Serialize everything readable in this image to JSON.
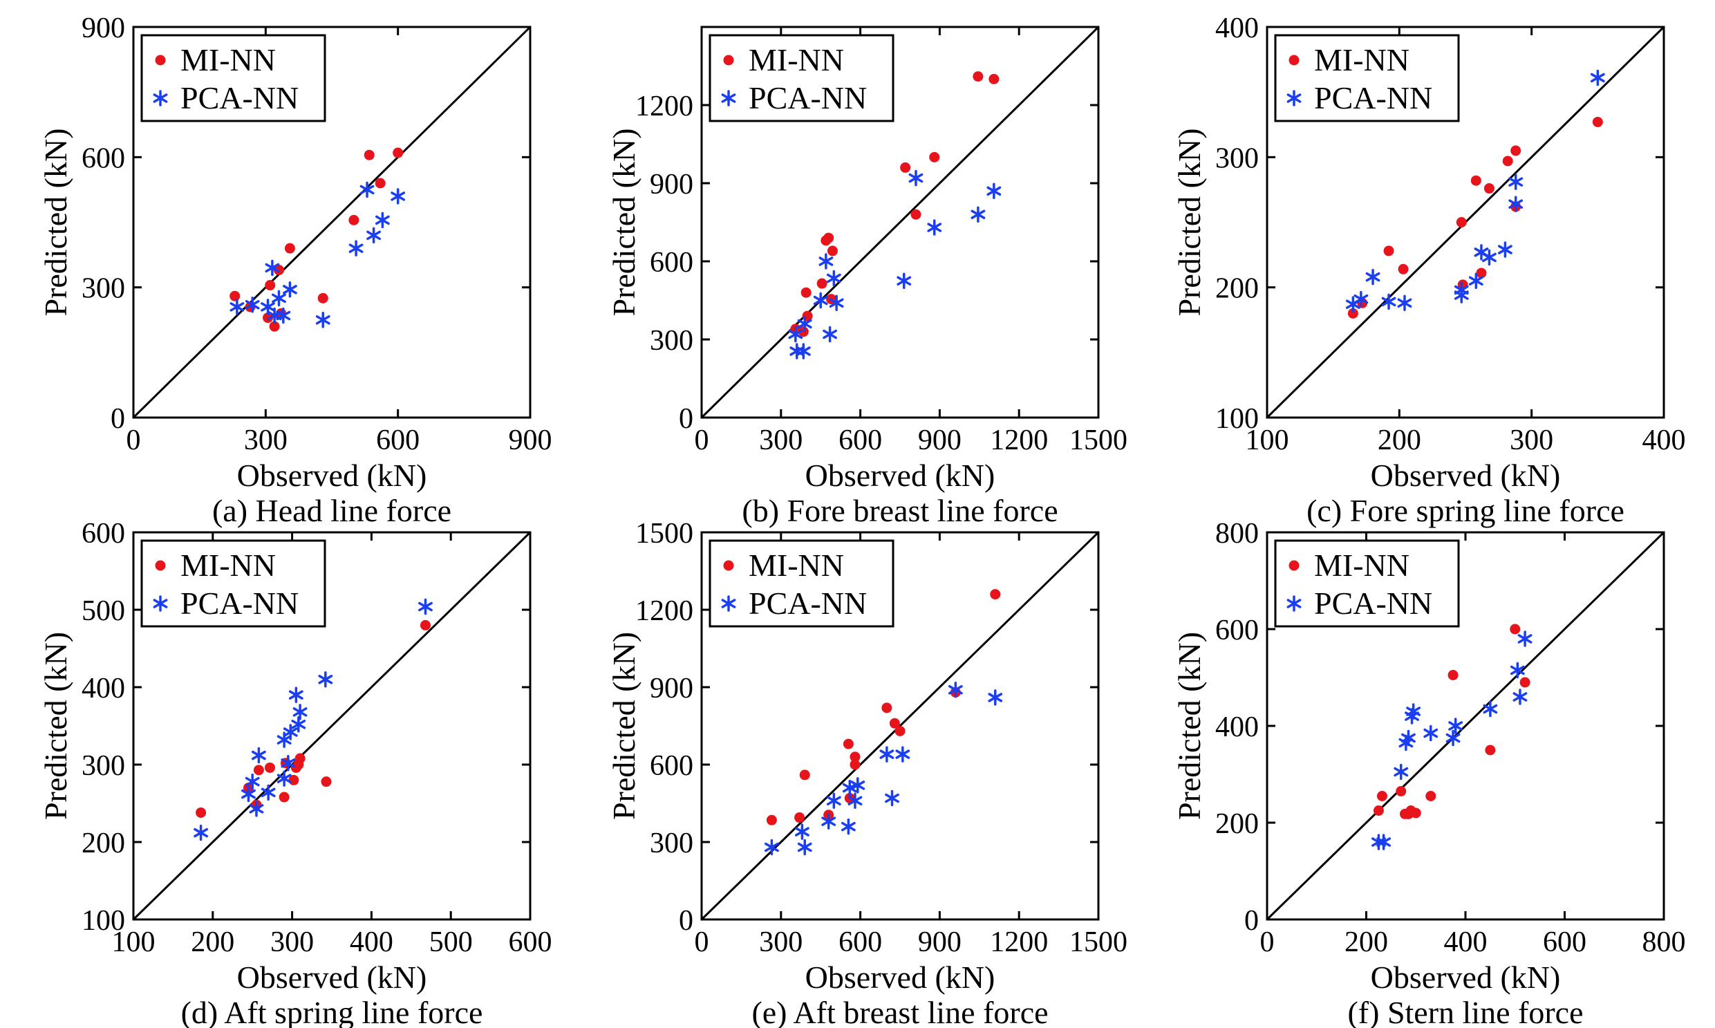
{
  "legend": {
    "mi_nn": "MI-NN",
    "pca_nn": "PCA-NN"
  },
  "colors": {
    "mi_nn": "#e8141b",
    "pca_nn": "#1a3ff0",
    "axes": "#000000"
  },
  "chart_data": [
    {
      "type": "scatter",
      "caption": "(a) Head line force",
      "xlabel": "Observed (kN)",
      "ylabel": "Predicted (kN)",
      "xlim": [
        0,
        900
      ],
      "ylim": [
        0,
        900
      ],
      "xticks": [
        0,
        300,
        600,
        900
      ],
      "yticks": [
        0,
        300,
        600,
        900
      ],
      "legend_position": "top-left",
      "reference_line": "y=x",
      "series": [
        {
          "name": "MI-NN",
          "marker": "dot",
          "points": [
            [
              230,
              280
            ],
            [
              265,
              255
            ],
            [
              305,
              230
            ],
            [
              310,
              305
            ],
            [
              320,
              210
            ],
            [
              330,
              340
            ],
            [
              335,
              240
            ],
            [
              355,
              390
            ],
            [
              430,
              275
            ],
            [
              500,
              455
            ],
            [
              535,
              605
            ],
            [
              560,
              540
            ],
            [
              600,
              610
            ]
          ]
        },
        {
          "name": "PCA-NN",
          "marker": "asterisk",
          "points": [
            [
              235,
              255
            ],
            [
              270,
              260
            ],
            [
              305,
              255
            ],
            [
              315,
              345
            ],
            [
              320,
              235
            ],
            [
              330,
              275
            ],
            [
              340,
              235
            ],
            [
              355,
              295
            ],
            [
              430,
              225
            ],
            [
              505,
              390
            ],
            [
              530,
              525
            ],
            [
              545,
              420
            ],
            [
              565,
              455
            ],
            [
              600,
              510
            ]
          ]
        }
      ]
    },
    {
      "type": "scatter",
      "caption": "(b) Fore breast line force",
      "xlabel": "Observed (kN)",
      "ylabel": "Predicted (kN)",
      "xlim": [
        0,
        1500
      ],
      "ylim": [
        0,
        1500
      ],
      "xticks": [
        0,
        300,
        600,
        900,
        1200,
        1500
      ],
      "yticks": [
        0,
        300,
        600,
        900,
        1200
      ],
      "legend_position": "top-left",
      "reference_line": "y=x",
      "series": [
        {
          "name": "MI-NN",
          "marker": "dot",
          "points": [
            [
              355,
              340
            ],
            [
              385,
              330
            ],
            [
              395,
              480
            ],
            [
              400,
              390
            ],
            [
              455,
              515
            ],
            [
              470,
              680
            ],
            [
              480,
              690
            ],
            [
              490,
              455
            ],
            [
              495,
              640
            ],
            [
              770,
              960
            ],
            [
              810,
              780
            ],
            [
              880,
              1000
            ],
            [
              1045,
              1310
            ],
            [
              1105,
              1300
            ]
          ]
        },
        {
          "name": "PCA-NN",
          "marker": "asterisk",
          "points": [
            [
              355,
              320
            ],
            [
              360,
              255
            ],
            [
              385,
              255
            ],
            [
              390,
              360
            ],
            [
              450,
              450
            ],
            [
              470,
              600
            ],
            [
              485,
              320
            ],
            [
              500,
              535
            ],
            [
              510,
              440
            ],
            [
              765,
              525
            ],
            [
              810,
              920
            ],
            [
              880,
              730
            ],
            [
              1045,
              780
            ],
            [
              1105,
              870
            ]
          ]
        }
      ]
    },
    {
      "type": "scatter",
      "caption": "(c) Fore spring line force",
      "xlabel": "Observed (kN)",
      "ylabel": "Predicted (kN)",
      "xlim": [
        100,
        400
      ],
      "ylim": [
        100,
        400
      ],
      "xticks": [
        100,
        200,
        300,
        400
      ],
      "yticks": [
        100,
        200,
        300,
        400
      ],
      "legend_position": "top-left",
      "reference_line": "y=x",
      "series": [
        {
          "name": "MI-NN",
          "marker": "dot",
          "points": [
            [
              165,
              180
            ],
            [
              172,
              188
            ],
            [
              192,
              228
            ],
            [
              203,
              214
            ],
            [
              247,
              250
            ],
            [
              248,
              202
            ],
            [
              258,
              282
            ],
            [
              262,
              211
            ],
            [
              268,
              276
            ],
            [
              282,
              297
            ],
            [
              288,
              305
            ],
            [
              288,
              262
            ],
            [
              350,
              327
            ]
          ]
        },
        {
          "name": "PCA-NN",
          "marker": "asterisk",
          "points": [
            [
              165,
              187
            ],
            [
              171,
              191
            ],
            [
              180,
              208
            ],
            [
              192,
              189
            ],
            [
              204,
              188
            ],
            [
              247,
              198
            ],
            [
              247,
              194
            ],
            [
              258,
              205
            ],
            [
              262,
              227
            ],
            [
              268,
              223
            ],
            [
              280,
              229
            ],
            [
              288,
              281
            ],
            [
              288,
              264
            ],
            [
              350,
              361
            ]
          ]
        }
      ]
    },
    {
      "type": "scatter",
      "caption": "(d) Aft spring line force",
      "xlabel": "Observed (kN)",
      "ylabel": "Predicted (kN)",
      "xlim": [
        100,
        600
      ],
      "ylim": [
        100,
        600
      ],
      "xticks": [
        100,
        200,
        300,
        400,
        500,
        600
      ],
      "yticks": [
        100,
        200,
        300,
        400,
        500,
        600
      ],
      "legend_position": "top-left",
      "reference_line": "y=x",
      "series": [
        {
          "name": "MI-NN",
          "marker": "dot",
          "points": [
            [
              185,
              238
            ],
            [
              245,
              270
            ],
            [
              255,
              248
            ],
            [
              258,
              293
            ],
            [
              272,
              296
            ],
            [
              290,
              258
            ],
            [
              292,
              302
            ],
            [
              302,
              280
            ],
            [
              305,
              296
            ],
            [
              308,
              300
            ],
            [
              310,
              308
            ],
            [
              343,
              278
            ],
            [
              468,
              480
            ]
          ]
        },
        {
          "name": "PCA-NN",
          "marker": "asterisk",
          "points": [
            [
              185,
              212
            ],
            [
              245,
              262
            ],
            [
              250,
              278
            ],
            [
              255,
              243
            ],
            [
              258,
              312
            ],
            [
              270,
              264
            ],
            [
              290,
              282
            ],
            [
              290,
              332
            ],
            [
              295,
              302
            ],
            [
              298,
              342
            ],
            [
              305,
              390
            ],
            [
              308,
              352
            ],
            [
              310,
              368
            ],
            [
              342,
              410
            ],
            [
              468,
              504
            ]
          ]
        }
      ]
    },
    {
      "type": "scatter",
      "caption": "(e) Aft breast line force",
      "xlabel": "Observed (kN)",
      "ylabel": "Predicted (kN)",
      "xlim": [
        0,
        1500
      ],
      "ylim": [
        0,
        1500
      ],
      "xticks": [
        0,
        300,
        600,
        900,
        1200,
        1500
      ],
      "yticks": [
        0,
        300,
        600,
        900,
        1200,
        1500
      ],
      "legend_position": "top-left",
      "reference_line": "y=x",
      "series": [
        {
          "name": "MI-NN",
          "marker": "dot",
          "points": [
            [
              265,
              385
            ],
            [
              370,
              395
            ],
            [
              390,
              560
            ],
            [
              480,
              405
            ],
            [
              560,
              470
            ],
            [
              580,
              600
            ],
            [
              555,
              680
            ],
            [
              580,
              630
            ],
            [
              700,
              820
            ],
            [
              730,
              760
            ],
            [
              750,
              730
            ],
            [
              960,
              880
            ],
            [
              1110,
              1260
            ]
          ]
        },
        {
          "name": "PCA-NN",
          "marker": "asterisk",
          "points": [
            [
              265,
              280
            ],
            [
              380,
              340
            ],
            [
              390,
              280
            ],
            [
              480,
              380
            ],
            [
              500,
              460
            ],
            [
              555,
              360
            ],
            [
              560,
              510
            ],
            [
              580,
              460
            ],
            [
              590,
              520
            ],
            [
              700,
              640
            ],
            [
              720,
              470
            ],
            [
              760,
              640
            ],
            [
              960,
              890
            ],
            [
              1110,
              860
            ]
          ]
        }
      ]
    },
    {
      "type": "scatter",
      "caption": "(f) Stern line force",
      "xlabel": "Observed (kN)",
      "ylabel": "Predicted (kN)",
      "xlim": [
        0,
        800
      ],
      "ylim": [
        0,
        800
      ],
      "xticks": [
        0,
        200,
        400,
        600,
        800
      ],
      "yticks": [
        0,
        200,
        400,
        600,
        800
      ],
      "legend_position": "top-left",
      "reference_line": "y=x",
      "series": [
        {
          "name": "MI-NN",
          "marker": "dot",
          "points": [
            [
              225,
              225
            ],
            [
              232,
              255
            ],
            [
              270,
              265
            ],
            [
              278,
              218
            ],
            [
              285,
              218
            ],
            [
              290,
              225
            ],
            [
              300,
              220
            ],
            [
              330,
              255
            ],
            [
              375,
              505
            ],
            [
              450,
              350
            ],
            [
              500,
              600
            ],
            [
              520,
              490
            ]
          ]
        },
        {
          "name": "PCA-NN",
          "marker": "asterisk",
          "points": [
            [
              225,
              160
            ],
            [
              235,
              160
            ],
            [
              270,
              305
            ],
            [
              280,
              365
            ],
            [
              285,
              375
            ],
            [
              292,
              420
            ],
            [
              295,
              430
            ],
            [
              330,
              385
            ],
            [
              375,
              375
            ],
            [
              380,
              400
            ],
            [
              450,
              435
            ],
            [
              505,
              515
            ],
            [
              510,
              460
            ],
            [
              520,
              580
            ]
          ]
        }
      ]
    }
  ]
}
